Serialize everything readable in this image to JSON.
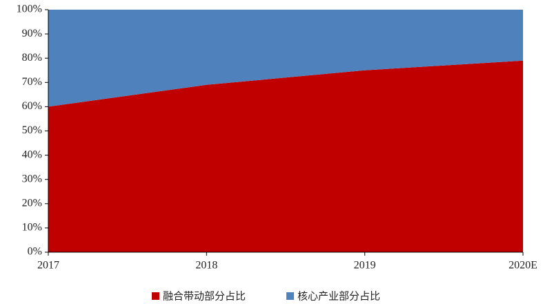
{
  "chart_data": {
    "type": "stacked_area",
    "categories": [
      "2017",
      "2018",
      "2019",
      "2020E"
    ],
    "series": [
      {
        "name": "融合带动部分占比",
        "color": "#c00000",
        "values": [
          60,
          69,
          75,
          79
        ]
      },
      {
        "name": "核心产业部分占比",
        "color": "#4f81bd",
        "values": [
          40,
          31,
          25,
          21
        ]
      }
    ],
    "ylim": [
      0,
      100
    ],
    "yticks": [
      {
        "value": 0,
        "label": "0%"
      },
      {
        "value": 10,
        "label": "10%"
      },
      {
        "value": 20,
        "label": "20%"
      },
      {
        "value": 30,
        "label": "30%"
      },
      {
        "value": 40,
        "label": "40%"
      },
      {
        "value": 50,
        "label": "50%"
      },
      {
        "value": 60,
        "label": "60%"
      },
      {
        "value": 70,
        "label": "70%"
      },
      {
        "value": 80,
        "label": "80%"
      },
      {
        "value": 90,
        "label": "90%"
      },
      {
        "value": 100,
        "label": "100%"
      }
    ],
    "legend": "bottom"
  }
}
